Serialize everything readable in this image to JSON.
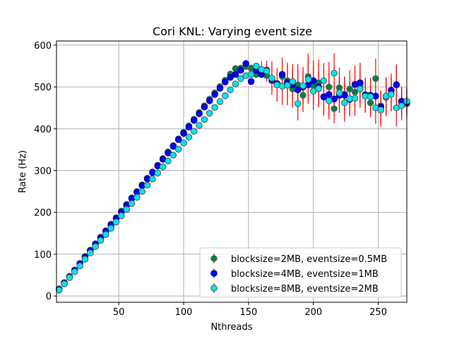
{
  "chart_data": {
    "type": "scatter",
    "title": "Cori KNL: Varying event size",
    "xlabel": "Nthreads",
    "ylabel": "Rate (Hz)",
    "xlim": [
      2,
      272
    ],
    "ylim": [
      -15,
      610
    ],
    "xticks": [
      50,
      100,
      150,
      200,
      250
    ],
    "yticks": [
      0,
      100,
      200,
      300,
      400,
      500,
      600
    ],
    "grid": true,
    "legend_position": "lower right",
    "error_bar_color": "#ff0000",
    "series": [
      {
        "name": "blocksize=2MB, eventsize=0.5MB",
        "color": "#008040",
        "edge": "#666666",
        "points": [
          [
            4,
            17
          ],
          [
            8,
            32
          ],
          [
            12,
            47
          ],
          [
            16,
            62
          ],
          [
            20,
            78
          ],
          [
            24,
            95
          ],
          [
            28,
            110
          ],
          [
            32,
            125
          ],
          [
            36,
            141
          ],
          [
            40,
            156
          ],
          [
            44,
            172
          ],
          [
            48,
            187
          ],
          [
            52,
            203
          ],
          [
            56,
            219
          ],
          [
            60,
            235
          ],
          [
            64,
            250
          ],
          [
            68,
            266
          ],
          [
            72,
            282
          ],
          [
            76,
            297
          ],
          [
            80,
            313
          ],
          [
            84,
            329
          ],
          [
            88,
            345
          ],
          [
            92,
            360
          ],
          [
            96,
            376
          ],
          [
            100,
            392
          ],
          [
            104,
            407
          ],
          [
            108,
            423
          ],
          [
            112,
            439
          ],
          [
            116,
            455
          ],
          [
            120,
            471
          ],
          [
            124,
            486
          ],
          [
            128,
            501
          ],
          [
            132,
            516
          ],
          [
            136,
            531
          ],
          [
            140,
            544
          ],
          [
            144,
            545
          ],
          [
            148,
            549
          ],
          [
            152,
            545
          ],
          [
            156,
            530
          ],
          [
            160,
            535
          ],
          [
            164,
            527
          ],
          [
            168,
            515
          ],
          [
            172,
            505
          ],
          [
            176,
            525
          ],
          [
            180,
            515
          ],
          [
            184,
            495
          ],
          [
            188,
            505
          ],
          [
            192,
            480
          ],
          [
            196,
            525
          ],
          [
            200,
            503
          ],
          [
            204,
            510
          ],
          [
            208,
            477
          ],
          [
            212,
            500
          ],
          [
            216,
            448
          ],
          [
            220,
            498
          ],
          [
            224,
            483
          ],
          [
            228,
            495
          ],
          [
            232,
            488
          ],
          [
            236,
            503
          ],
          [
            240,
            482
          ],
          [
            244,
            462
          ],
          [
            248,
            520
          ],
          [
            252,
            455
          ],
          [
            256,
            475
          ],
          [
            260,
            484
          ],
          [
            264,
            506
          ],
          [
            268,
            463
          ],
          [
            272,
            460
          ]
        ],
        "errors": [
          [
            184,
            45
          ],
          [
            188,
            50
          ],
          [
            192,
            40
          ],
          [
            196,
            55
          ],
          [
            200,
            45
          ],
          [
            204,
            55
          ],
          [
            208,
            40
          ],
          [
            212,
            60
          ],
          [
            216,
            35
          ],
          [
            220,
            48
          ],
          [
            224,
            40
          ],
          [
            228,
            45
          ],
          [
            232,
            38
          ],
          [
            236,
            48
          ],
          [
            240,
            40
          ],
          [
            244,
            35
          ],
          [
            248,
            48
          ],
          [
            252,
            35
          ],
          [
            256,
            45
          ],
          [
            260,
            42
          ],
          [
            264,
            48
          ],
          [
            268,
            35
          ],
          [
            272,
            35
          ]
        ]
      },
      {
        "name": "blocksize=4MB, eventsize=1MB",
        "color": "#0000ff",
        "edge": "#000080",
        "points": [
          [
            4,
            16
          ],
          [
            8,
            31
          ],
          [
            12,
            46
          ],
          [
            16,
            61
          ],
          [
            20,
            77
          ],
          [
            24,
            93
          ],
          [
            28,
            108
          ],
          [
            32,
            124
          ],
          [
            36,
            139
          ],
          [
            40,
            155
          ],
          [
            44,
            170
          ],
          [
            48,
            186
          ],
          [
            52,
            201
          ],
          [
            56,
            217
          ],
          [
            60,
            233
          ],
          [
            64,
            248
          ],
          [
            68,
            264
          ],
          [
            72,
            280
          ],
          [
            76,
            295
          ],
          [
            80,
            311
          ],
          [
            84,
            327
          ],
          [
            88,
            342
          ],
          [
            92,
            358
          ],
          [
            96,
            374
          ],
          [
            100,
            389
          ],
          [
            104,
            404
          ],
          [
            108,
            420
          ],
          [
            112,
            436
          ],
          [
            116,
            452
          ],
          [
            120,
            467
          ],
          [
            124,
            482
          ],
          [
            128,
            497
          ],
          [
            132,
            512
          ],
          [
            136,
            523
          ],
          [
            140,
            530
          ],
          [
            144,
            540
          ],
          [
            148,
            556
          ],
          [
            152,
            513
          ],
          [
            156,
            540
          ],
          [
            160,
            530
          ],
          [
            164,
            540
          ],
          [
            168,
            517
          ],
          [
            172,
            508
          ],
          [
            176,
            530
          ],
          [
            180,
            510
          ],
          [
            184,
            505
          ],
          [
            188,
            493
          ],
          [
            192,
            500
          ],
          [
            196,
            505
          ],
          [
            200,
            515
          ],
          [
            204,
            500
          ],
          [
            208,
            476
          ],
          [
            212,
            482
          ],
          [
            216,
            471
          ],
          [
            220,
            480
          ],
          [
            224,
            480
          ],
          [
            228,
            470
          ],
          [
            232,
            506
          ],
          [
            236,
            510
          ],
          [
            240,
            480
          ],
          [
            244,
            480
          ],
          [
            248,
            478
          ],
          [
            252,
            452
          ],
          [
            256,
            478
          ],
          [
            260,
            492
          ],
          [
            264,
            505
          ],
          [
            268,
            466
          ],
          [
            272,
            462
          ]
        ],
        "errors": [
          [
            176,
            40
          ],
          [
            180,
            48
          ],
          [
            184,
            40
          ],
          [
            188,
            48
          ],
          [
            192,
            40
          ],
          [
            196,
            45
          ],
          [
            200,
            48
          ],
          [
            204,
            42
          ],
          [
            208,
            45
          ],
          [
            212,
            52
          ],
          [
            216,
            40
          ],
          [
            220,
            42
          ],
          [
            224,
            45
          ],
          [
            228,
            40
          ],
          [
            232,
            45
          ],
          [
            236,
            48
          ],
          [
            240,
            40
          ],
          [
            244,
            42
          ],
          [
            248,
            38
          ],
          [
            252,
            40
          ],
          [
            256,
            45
          ],
          [
            260,
            40
          ],
          [
            264,
            45
          ],
          [
            268,
            35
          ],
          [
            272,
            32
          ]
        ]
      },
      {
        "name": "blocksize=8MB, eventsize=2MB",
        "color": "#00e5ee",
        "edge": "#555555",
        "points": [
          [
            4,
            14
          ],
          [
            8,
            29
          ],
          [
            12,
            44
          ],
          [
            16,
            58
          ],
          [
            20,
            72
          ],
          [
            24,
            88
          ],
          [
            28,
            103
          ],
          [
            32,
            118
          ],
          [
            36,
            133
          ],
          [
            40,
            147
          ],
          [
            44,
            162
          ],
          [
            48,
            177
          ],
          [
            52,
            192
          ],
          [
            56,
            207
          ],
          [
            60,
            221
          ],
          [
            64,
            236
          ],
          [
            68,
            250
          ],
          [
            72,
            265
          ],
          [
            76,
            280
          ],
          [
            80,
            294
          ],
          [
            84,
            309
          ],
          [
            88,
            323
          ],
          [
            92,
            337
          ],
          [
            96,
            351
          ],
          [
            100,
            366
          ],
          [
            104,
            380
          ],
          [
            108,
            394
          ],
          [
            112,
            408
          ],
          [
            116,
            422
          ],
          [
            120,
            437
          ],
          [
            124,
            451
          ],
          [
            128,
            465
          ],
          [
            132,
            479
          ],
          [
            136,
            493
          ],
          [
            140,
            507
          ],
          [
            144,
            520
          ],
          [
            148,
            527
          ],
          [
            152,
            530
          ],
          [
            156,
            550
          ],
          [
            160,
            542
          ],
          [
            164,
            538
          ],
          [
            168,
            521
          ],
          [
            172,
            505
          ],
          [
            176,
            502
          ],
          [
            180,
            504
          ],
          [
            184,
            513
          ],
          [
            188,
            460
          ],
          [
            192,
            503
          ],
          [
            196,
            518
          ],
          [
            200,
            490
          ],
          [
            204,
            496
          ],
          [
            208,
            515
          ],
          [
            212,
            467
          ],
          [
            216,
            533
          ],
          [
            220,
            486
          ],
          [
            224,
            462
          ],
          [
            228,
            472
          ],
          [
            232,
            473
          ],
          [
            236,
            495
          ],
          [
            240,
            478
          ],
          [
            244,
            477
          ],
          [
            248,
            450
          ],
          [
            252,
            445
          ],
          [
            256,
            478
          ],
          [
            260,
            482
          ],
          [
            264,
            450
          ],
          [
            268,
            455
          ],
          [
            272,
            466
          ]
        ],
        "errors": [
          [
            160,
            20
          ],
          [
            164,
            25
          ],
          [
            168,
            40
          ],
          [
            172,
            40
          ],
          [
            176,
            45
          ],
          [
            180,
            48
          ],
          [
            184,
            42
          ],
          [
            188,
            40
          ],
          [
            192,
            45
          ],
          [
            196,
            48
          ],
          [
            200,
            45
          ],
          [
            204,
            45
          ],
          [
            208,
            42
          ],
          [
            212,
            45
          ],
          [
            216,
            48
          ],
          [
            220,
            40
          ],
          [
            224,
            45
          ],
          [
            228,
            38
          ],
          [
            232,
            42
          ],
          [
            236,
            45
          ],
          [
            240,
            40
          ],
          [
            244,
            42
          ],
          [
            248,
            38
          ],
          [
            252,
            40
          ],
          [
            256,
            45
          ],
          [
            260,
            40
          ],
          [
            264,
            45
          ],
          [
            268,
            35
          ],
          [
            272,
            32
          ]
        ]
      }
    ]
  }
}
